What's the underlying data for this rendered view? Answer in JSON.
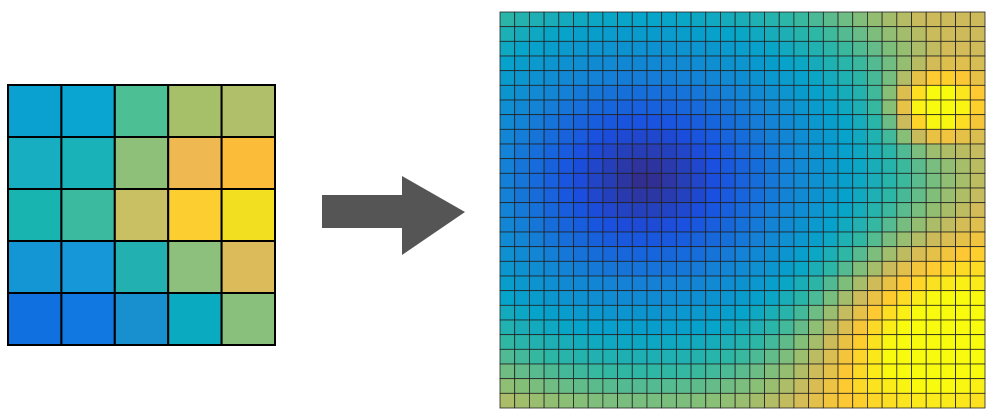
{
  "input_grid": {
    "rows": 5,
    "cols": 5,
    "colors": [
      [
        "#0aa0d0",
        "#0aa5d0",
        "#4cbf94",
        "#a6c06a",
        "#b0c06a"
      ],
      [
        "#16aec0",
        "#18b2b8",
        "#8fc07a",
        "#f0b850",
        "#fbbc3a"
      ],
      [
        "#18b4b0",
        "#3cbaa0",
        "#c8c062",
        "#fcce30",
        "#f2e020"
      ],
      [
        "#1496d4",
        "#1698d8",
        "#22b0b0",
        "#8cc07c",
        "#dcbc5a"
      ],
      [
        "#1070e0",
        "#1078e0",
        "#1890d0",
        "#0aaac0",
        "#88c07c"
      ]
    ]
  },
  "output_grid": {
    "rows": 27,
    "cols": 33
  }
}
